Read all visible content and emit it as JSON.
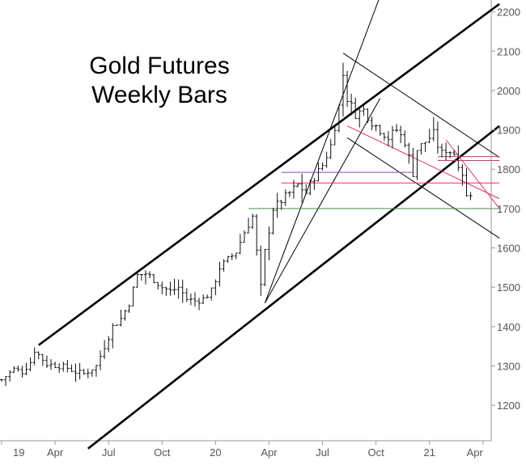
{
  "chart_data": {
    "type": "ohlc",
    "title_lines": [
      "Gold Futures",
      "Weekly Bars"
    ],
    "x_ticks": [
      "19",
      "Apr",
      "Jul",
      "Oct",
      "20",
      "Apr",
      "Jul",
      "Oct",
      "21",
      "Apr"
    ],
    "y_ticks": [
      1200,
      1300,
      1400,
      1500,
      1600,
      1700,
      1800,
      1900,
      2000,
      2100,
      2200
    ],
    "ylim": [
      1110,
      2230
    ],
    "xlim_weeks": [
      0,
      119
    ],
    "grid": false,
    "y_axis_side": "right",
    "price_path": [
      [
        0,
        1265
      ],
      [
        3,
        1292
      ],
      [
        5,
        1285
      ],
      [
        7,
        1310
      ],
      [
        8,
        1340
      ],
      [
        11,
        1305
      ],
      [
        14,
        1300
      ],
      [
        16,
        1295
      ],
      [
        18,
        1285
      ],
      [
        20,
        1280
      ],
      [
        23,
        1300
      ],
      [
        25,
        1350
      ],
      [
        27,
        1400
      ],
      [
        29,
        1420
      ],
      [
        31,
        1460
      ],
      [
        33,
        1530
      ],
      [
        35,
        1535
      ],
      [
        37,
        1520
      ],
      [
        39,
        1500
      ],
      [
        41,
        1490
      ],
      [
        43,
        1500
      ],
      [
        45,
        1470
      ],
      [
        47,
        1465
      ],
      [
        49,
        1470
      ],
      [
        51,
        1490
      ],
      [
        53,
        1550
      ],
      [
        55,
        1570
      ],
      [
        57,
        1590
      ],
      [
        59,
        1640
      ],
      [
        61,
        1680
      ],
      [
        63,
        1500
      ],
      [
        64,
        1590
      ],
      [
        66,
        1700
      ],
      [
        68,
        1720
      ],
      [
        70,
        1740
      ],
      [
        72,
        1760
      ],
      [
        74,
        1740
      ],
      [
        76,
        1780
      ],
      [
        78,
        1810
      ],
      [
        80,
        1860
      ],
      [
        82,
        1960
      ],
      [
        83,
        2040
      ],
      [
        84,
        1980
      ],
      [
        86,
        1940
      ],
      [
        88,
        1950
      ],
      [
        90,
        1920
      ],
      [
        92,
        1900
      ],
      [
        94,
        1880
      ],
      [
        96,
        1900
      ],
      [
        98,
        1870
      ],
      [
        100,
        1790
      ],
      [
        101,
        1850
      ],
      [
        103,
        1870
      ],
      [
        105,
        1890
      ],
      [
        106,
        1860
      ],
      [
        107,
        1840
      ],
      [
        108,
        1850
      ],
      [
        110,
        1840
      ],
      [
        112,
        1790
      ],
      [
        113,
        1730
      ],
      [
        114,
        1740
      ]
    ],
    "annotation_lines": [
      {
        "name": "upper-channel-line",
        "color": "#000000",
        "weight": "thick",
        "points": [
          [
            9,
            1353
          ],
          [
            121,
            2220
          ]
        ]
      },
      {
        "name": "lower-channel-line",
        "color": "#000000",
        "weight": "thick",
        "points": [
          [
            21,
            1090
          ],
          [
            121,
            1910
          ]
        ]
      },
      {
        "name": "steep-trend-line-upper",
        "color": "#000000",
        "weight": "thin",
        "points": [
          [
            64,
            1460
          ],
          [
            92,
            2240
          ]
        ]
      },
      {
        "name": "steep-trend-line-lower",
        "color": "#000000",
        "weight": "thin",
        "points": [
          [
            64,
            1460
          ],
          [
            92,
            1980
          ]
        ]
      },
      {
        "name": "wedge-top-line",
        "color": "#000000",
        "weight": "thin",
        "points": [
          [
            83,
            2095
          ],
          [
            121,
            1830
          ]
        ]
      },
      {
        "name": "wedge-bottom-line",
        "color": "#000000",
        "weight": "thin",
        "points": [
          [
            84,
            1880
          ],
          [
            121,
            1625
          ]
        ]
      },
      {
        "name": "red-trend-line-1",
        "color": "#e0306a",
        "weight": "thin",
        "points": [
          [
            84,
            1910
          ],
          [
            121,
            1725
          ]
        ]
      },
      {
        "name": "red-trend-line-2",
        "color": "#e0306a",
        "weight": "thin",
        "points": [
          [
            108,
            1875
          ],
          [
            121,
            1700
          ]
        ]
      },
      {
        "name": "support-line-1700",
        "color": "#3a9a3a",
        "weight": "thin",
        "points": [
          [
            60,
            1700
          ],
          [
            121,
            1700
          ]
        ]
      },
      {
        "name": "purple-level-1790",
        "color": "#8844cc",
        "weight": "thin",
        "points": [
          [
            68,
            1792
          ],
          [
            100,
            1792
          ]
        ]
      },
      {
        "name": "red-level-1765",
        "color": "#e0306a",
        "weight": "thin",
        "points": [
          [
            68,
            1765
          ],
          [
            121,
            1765
          ]
        ]
      },
      {
        "name": "red-level-1822",
        "color": "#e0306a",
        "weight": "thin",
        "points": [
          [
            106,
            1822
          ],
          [
            121,
            1822
          ]
        ]
      },
      {
        "name": "red-level-1832",
        "color": "#e0306a",
        "weight": "thin",
        "points": [
          [
            106,
            1832
          ],
          [
            121,
            1832
          ]
        ]
      }
    ],
    "colors": {
      "bars": "#111111",
      "axis": "#9a9a9a",
      "tick_text": "#555555"
    }
  }
}
